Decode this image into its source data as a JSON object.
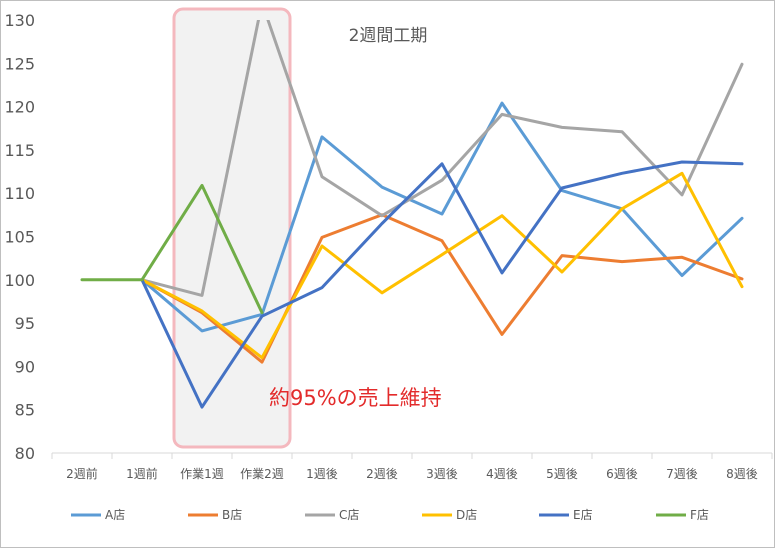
{
  "chart_data": {
    "type": "line",
    "title": "2週間工期",
    "annotation": "約95%の売上維持",
    "categories": [
      "2週前",
      "1週前",
      "作業1週",
      "作業2週",
      "1週後",
      "2週後",
      "3週後",
      "4週後",
      "5週後",
      "6週後",
      "7週後",
      "8週後"
    ],
    "ylim": [
      80,
      130
    ],
    "yticks": [
      80,
      85,
      90,
      95,
      100,
      105,
      110,
      115,
      120,
      125,
      130
    ],
    "grid": false,
    "legend_position": "bottom",
    "highlight_range": [
      "作業1週",
      "作業2週"
    ],
    "series": [
      {
        "name": "A店",
        "color": "#5b9bd5",
        "values": [
          null,
          100,
          94.1,
          96,
          116.5,
          110.7,
          107.6,
          120.4,
          110.3,
          108.2,
          100.5,
          107.1
        ]
      },
      {
        "name": "B店",
        "color": "#ed7d31",
        "values": [
          null,
          100,
          96.2,
          90.5,
          104.9,
          107.5,
          104.5,
          93.7,
          102.8,
          102.1,
          102.6,
          100.1
        ]
      },
      {
        "name": "C店",
        "color": "#a5a5a5",
        "values": [
          null,
          100,
          98.2,
          132,
          111.9,
          107.4,
          111.5,
          119.1,
          117.6,
          117.1,
          109.8,
          124.9
        ]
      },
      {
        "name": "D店",
        "color": "#ffc000",
        "values": [
          null,
          100,
          96.4,
          91,
          103.9,
          98.5,
          102.9,
          107.4,
          100.9,
          108.2,
          112.3,
          99.2
        ]
      },
      {
        "name": "E店",
        "color": "#4472c4",
        "values": [
          null,
          100,
          85.3,
          95.8,
          99.1,
          106.5,
          113.4,
          100.8,
          110.6,
          112.3,
          113.6,
          113.4
        ]
      },
      {
        "name": "F店",
        "color": "#70ad47",
        "values": [
          100,
          100,
          110.9,
          96.2,
          null,
          null,
          null,
          null,
          null,
          null,
          null,
          null
        ]
      }
    ]
  }
}
